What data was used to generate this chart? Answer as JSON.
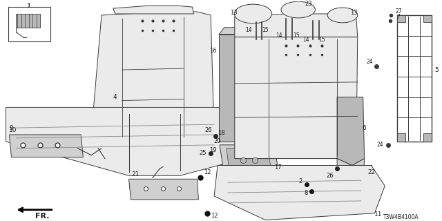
{
  "part_number": "T3W4B4100A",
  "background": "#ffffff",
  "lc": "#3a3a3a",
  "fc_seat": "#ebebeb",
  "fc_mid": "#d0d0d0",
  "fc_dark": "#b8b8b8",
  "fc_frame": "#c8c8c8"
}
